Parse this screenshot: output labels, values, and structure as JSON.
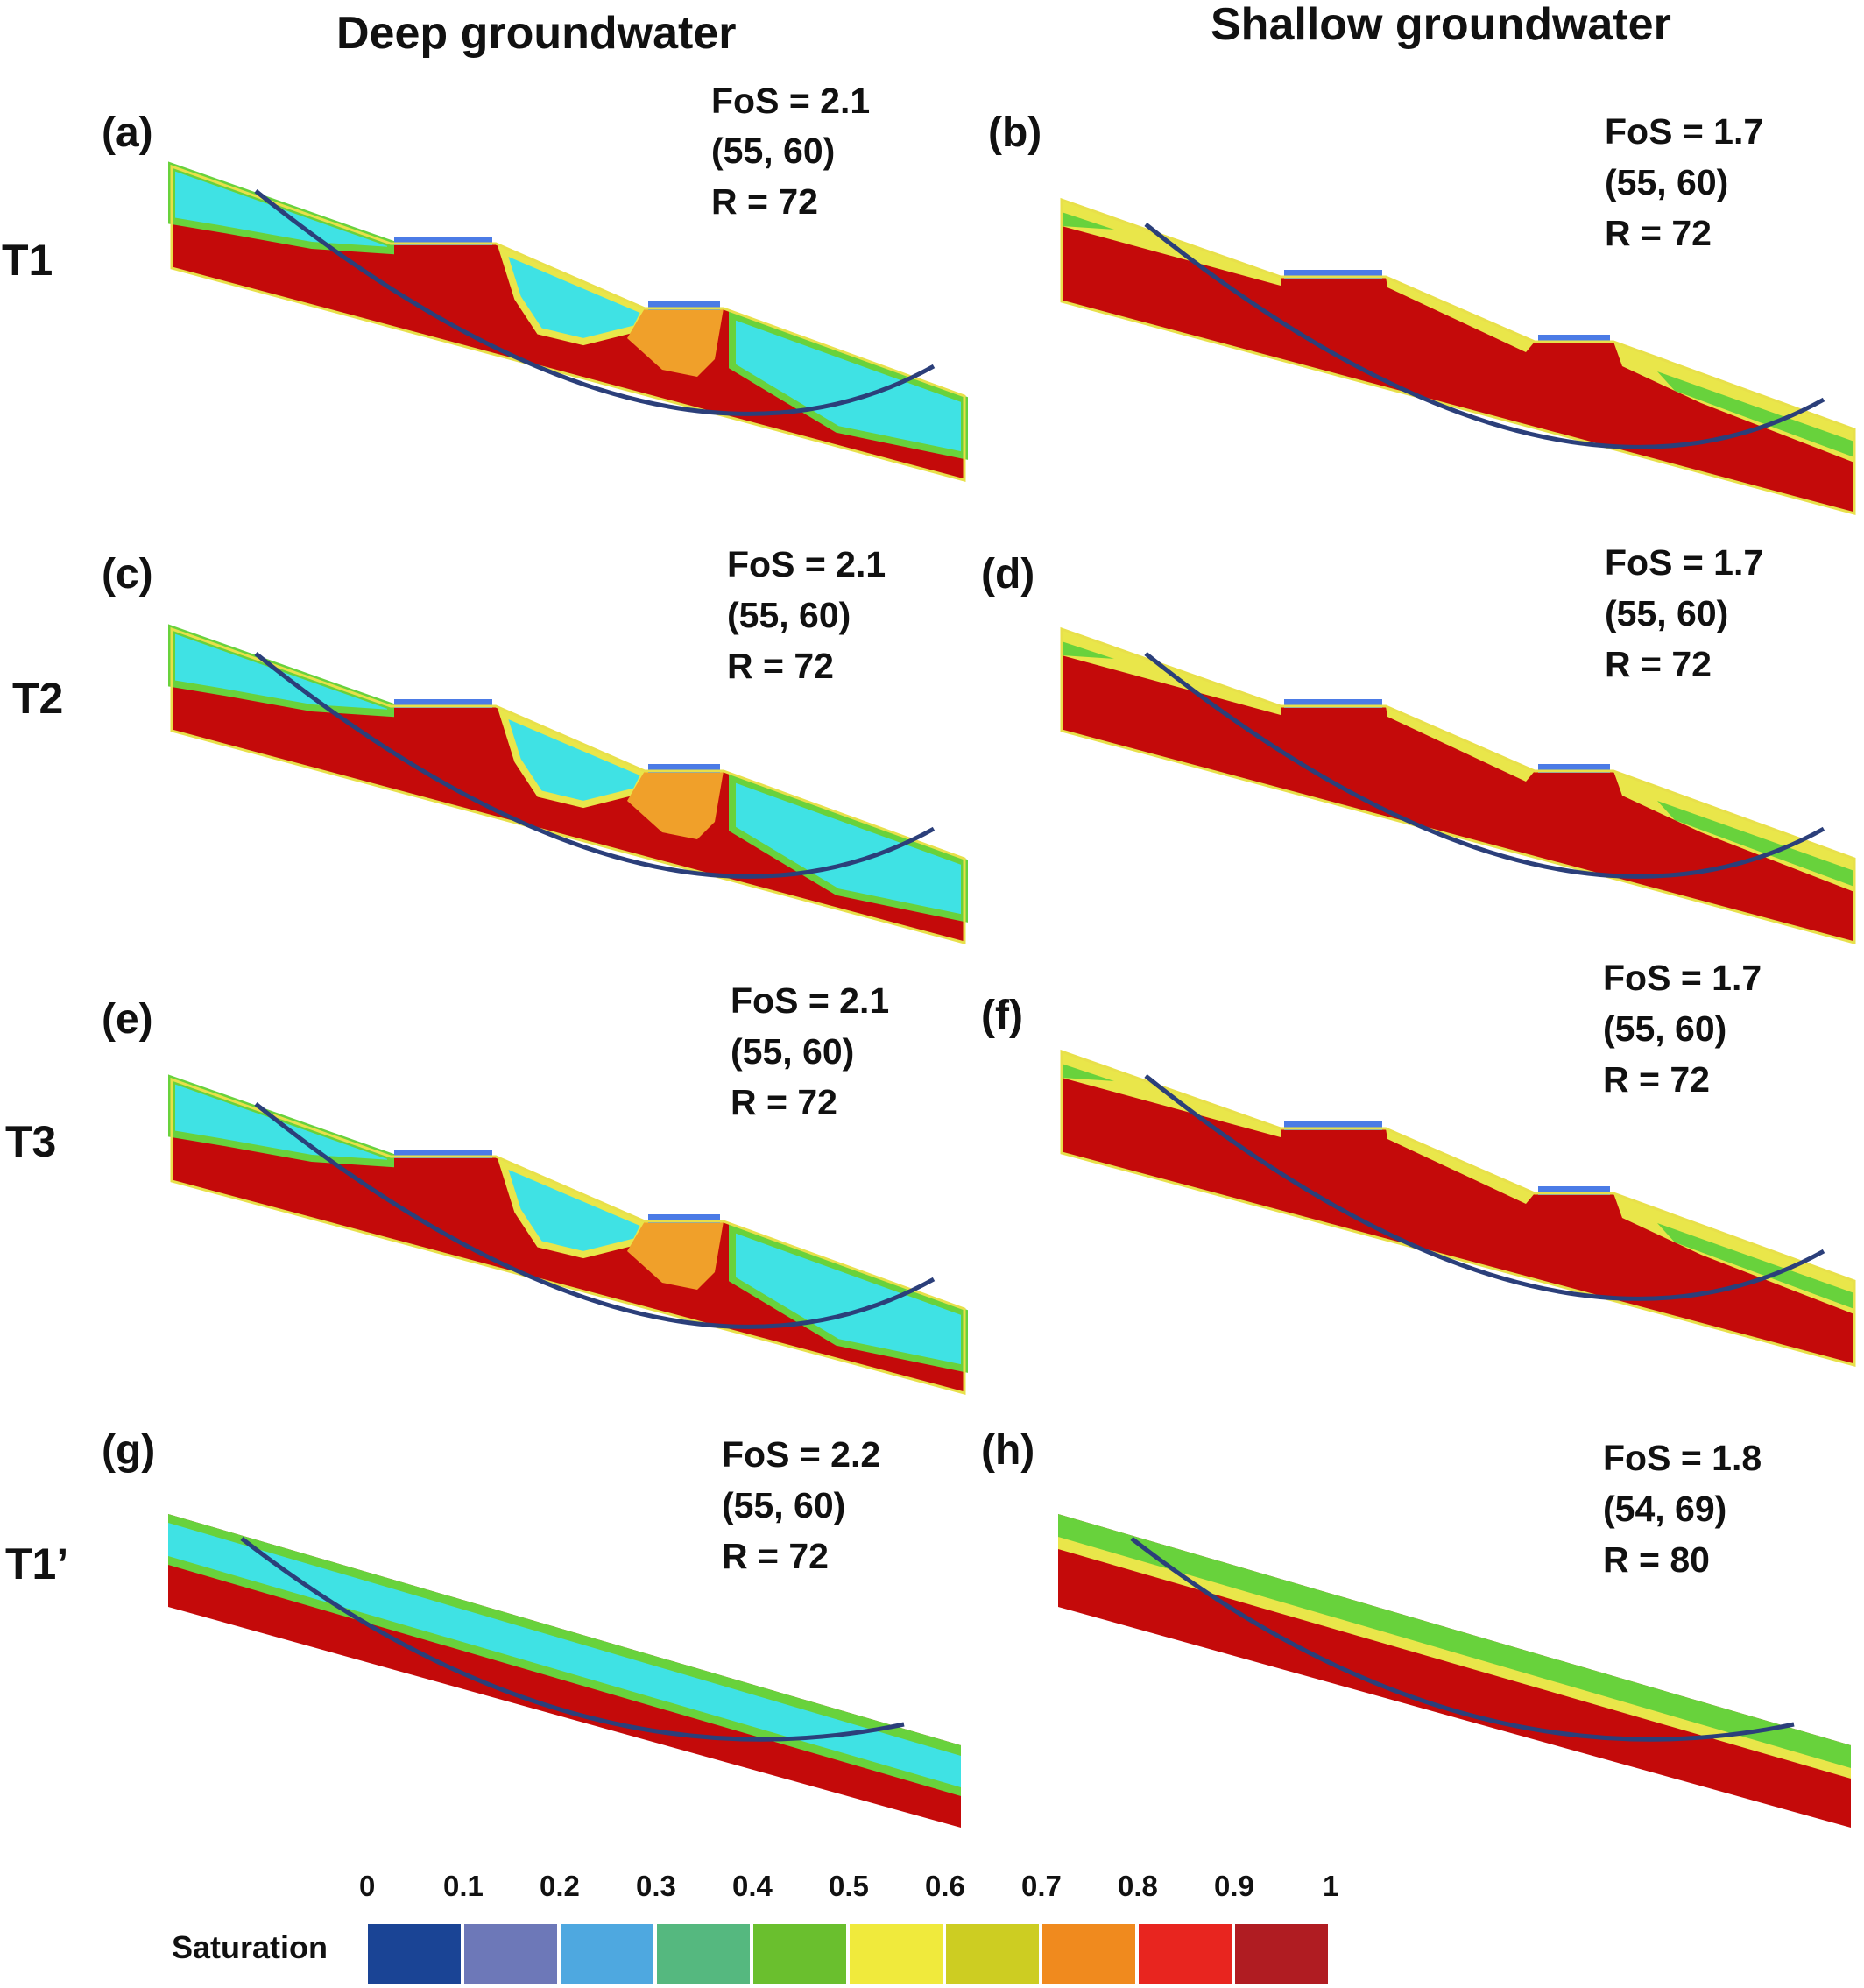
{
  "columns": [
    "Deep groundwater",
    "Shallow groundwater"
  ],
  "rows": [
    "T1",
    "T2",
    "T3",
    "T1’"
  ],
  "panels": [
    {
      "label": "(a)",
      "fos": "FoS = 2.1",
      "center": "(55, 60)",
      "radius": "R = 72",
      "profile": "terraced",
      "groundwater": "deep"
    },
    {
      "label": "(b)",
      "fos": "FoS = 1.7",
      "center": "(55, 60)",
      "radius": "R = 72",
      "profile": "terraced",
      "groundwater": "shallow"
    },
    {
      "label": "(c)",
      "fos": "FoS = 2.1",
      "center": "(55, 60)",
      "radius": "R = 72",
      "profile": "terraced",
      "groundwater": "deep"
    },
    {
      "label": "(d)",
      "fos": "FoS = 1.7",
      "center": "(55, 60)",
      "radius": "R = 72",
      "profile": "terraced",
      "groundwater": "shallow"
    },
    {
      "label": "(e)",
      "fos": "FoS = 2.1",
      "center": "(55, 60)",
      "radius": "R = 72",
      "profile": "terraced",
      "groundwater": "deep"
    },
    {
      "label": "(f)",
      "fos": "FoS = 1.7",
      "center": "(55, 60)",
      "radius": "R = 72",
      "profile": "terraced",
      "groundwater": "shallow"
    },
    {
      "label": "(g)",
      "fos": "FoS = 2.2",
      "center": "(55, 60)",
      "radius": "R = 72",
      "profile": "planar",
      "groundwater": "deep"
    },
    {
      "label": "(h)",
      "fos": "FoS = 1.8",
      "center": "(54, 69)",
      "radius": "R = 80",
      "profile": "planar",
      "groundwater": "shallow"
    }
  ],
  "colorbar": {
    "title": "Saturation",
    "ticks": [
      "0",
      "0.1",
      "0.2",
      "0.3",
      "0.4",
      "0.5",
      "0.6",
      "0.7",
      "0.8",
      "0.9",
      "1"
    ],
    "colors": [
      "#1a4495",
      "#6d78b8",
      "#4ea8e0",
      "#55b87f",
      "#6abf2e",
      "#f0ea3c",
      "#cdcd22",
      "#f08a1e",
      "#e8251f",
      "#b01c22"
    ]
  },
  "colors": {
    "saturated": "#c40a0a",
    "dry": "#3fe2e4",
    "wet_fringe": "#e9e64a",
    "fringe_green": "#68d23c",
    "transition": "#f0a02a",
    "pond": "#4b7be6",
    "slip_surface": "#2b3f7a"
  }
}
